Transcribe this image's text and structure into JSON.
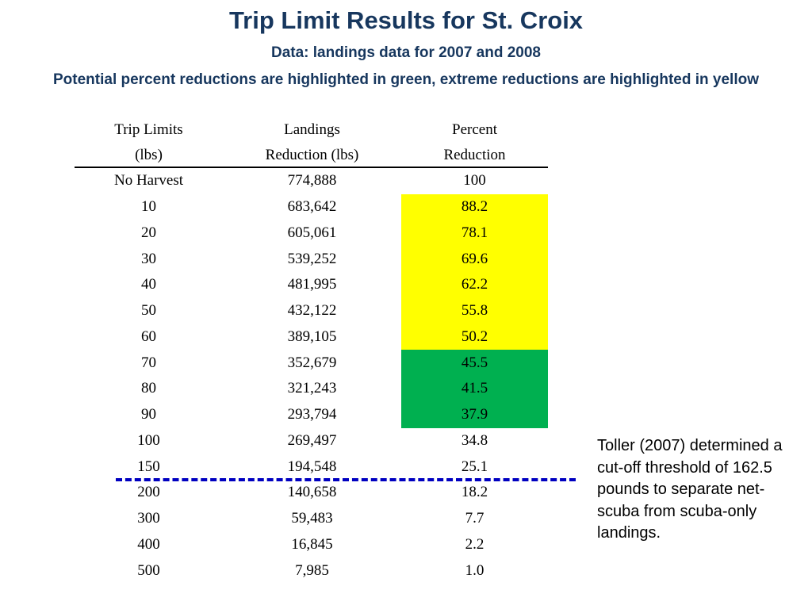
{
  "title": "Trip Limit Results for St. Croix",
  "subtitle": "Data: landings data for 2007 and 2008",
  "note": "Potential percent reductions are highlighted in green, extreme reductions are highlighted in yellow",
  "colors": {
    "heading": "#17375e",
    "yellow_highlight": "#ffff00",
    "green_highlight": "#00b050",
    "dashed_line": "#0000c0"
  },
  "table": {
    "headers": [
      [
        "Trip Limits",
        "(lbs)"
      ],
      [
        "Landings",
        "Reduction (lbs)"
      ],
      [
        "Percent",
        "Reduction"
      ]
    ],
    "rows": [
      {
        "trip_limit": "No Harvest",
        "landings_reduction": "774,888",
        "percent_reduction": "100",
        "highlight": "none"
      },
      {
        "trip_limit": "10",
        "landings_reduction": "683,642",
        "percent_reduction": "88.2",
        "highlight": "yellow"
      },
      {
        "trip_limit": "20",
        "landings_reduction": "605,061",
        "percent_reduction": "78.1",
        "highlight": "yellow"
      },
      {
        "trip_limit": "30",
        "landings_reduction": "539,252",
        "percent_reduction": "69.6",
        "highlight": "yellow"
      },
      {
        "trip_limit": "40",
        "landings_reduction": "481,995",
        "percent_reduction": "62.2",
        "highlight": "yellow"
      },
      {
        "trip_limit": "50",
        "landings_reduction": "432,122",
        "percent_reduction": "55.8",
        "highlight": "yellow"
      },
      {
        "trip_limit": "60",
        "landings_reduction": "389,105",
        "percent_reduction": "50.2",
        "highlight": "yellow"
      },
      {
        "trip_limit": "70",
        "landings_reduction": "352,679",
        "percent_reduction": "45.5",
        "highlight": "green"
      },
      {
        "trip_limit": "80",
        "landings_reduction": "321,243",
        "percent_reduction": "41.5",
        "highlight": "green"
      },
      {
        "trip_limit": "90",
        "landings_reduction": "293,794",
        "percent_reduction": "37.9",
        "highlight": "green"
      },
      {
        "trip_limit": "100",
        "landings_reduction": "269,497",
        "percent_reduction": "34.8",
        "highlight": "none"
      },
      {
        "trip_limit": "150",
        "landings_reduction": "194,548",
        "percent_reduction": "25.1",
        "highlight": "none"
      },
      {
        "trip_limit": "200",
        "landings_reduction": "140,658",
        "percent_reduction": "18.2",
        "highlight": "none"
      },
      {
        "trip_limit": "300",
        "landings_reduction": "59,483",
        "percent_reduction": "7.7",
        "highlight": "none"
      },
      {
        "trip_limit": "400",
        "landings_reduction": "16,845",
        "percent_reduction": "2.2",
        "highlight": "none"
      },
      {
        "trip_limit": "500",
        "landings_reduction": "7,985",
        "percent_reduction": "1.0",
        "highlight": "none"
      }
    ]
  },
  "side_note": "Toller (2007) determined a cut-off threshold of 162.5 pounds to separate net-scuba from scuba-only landings."
}
